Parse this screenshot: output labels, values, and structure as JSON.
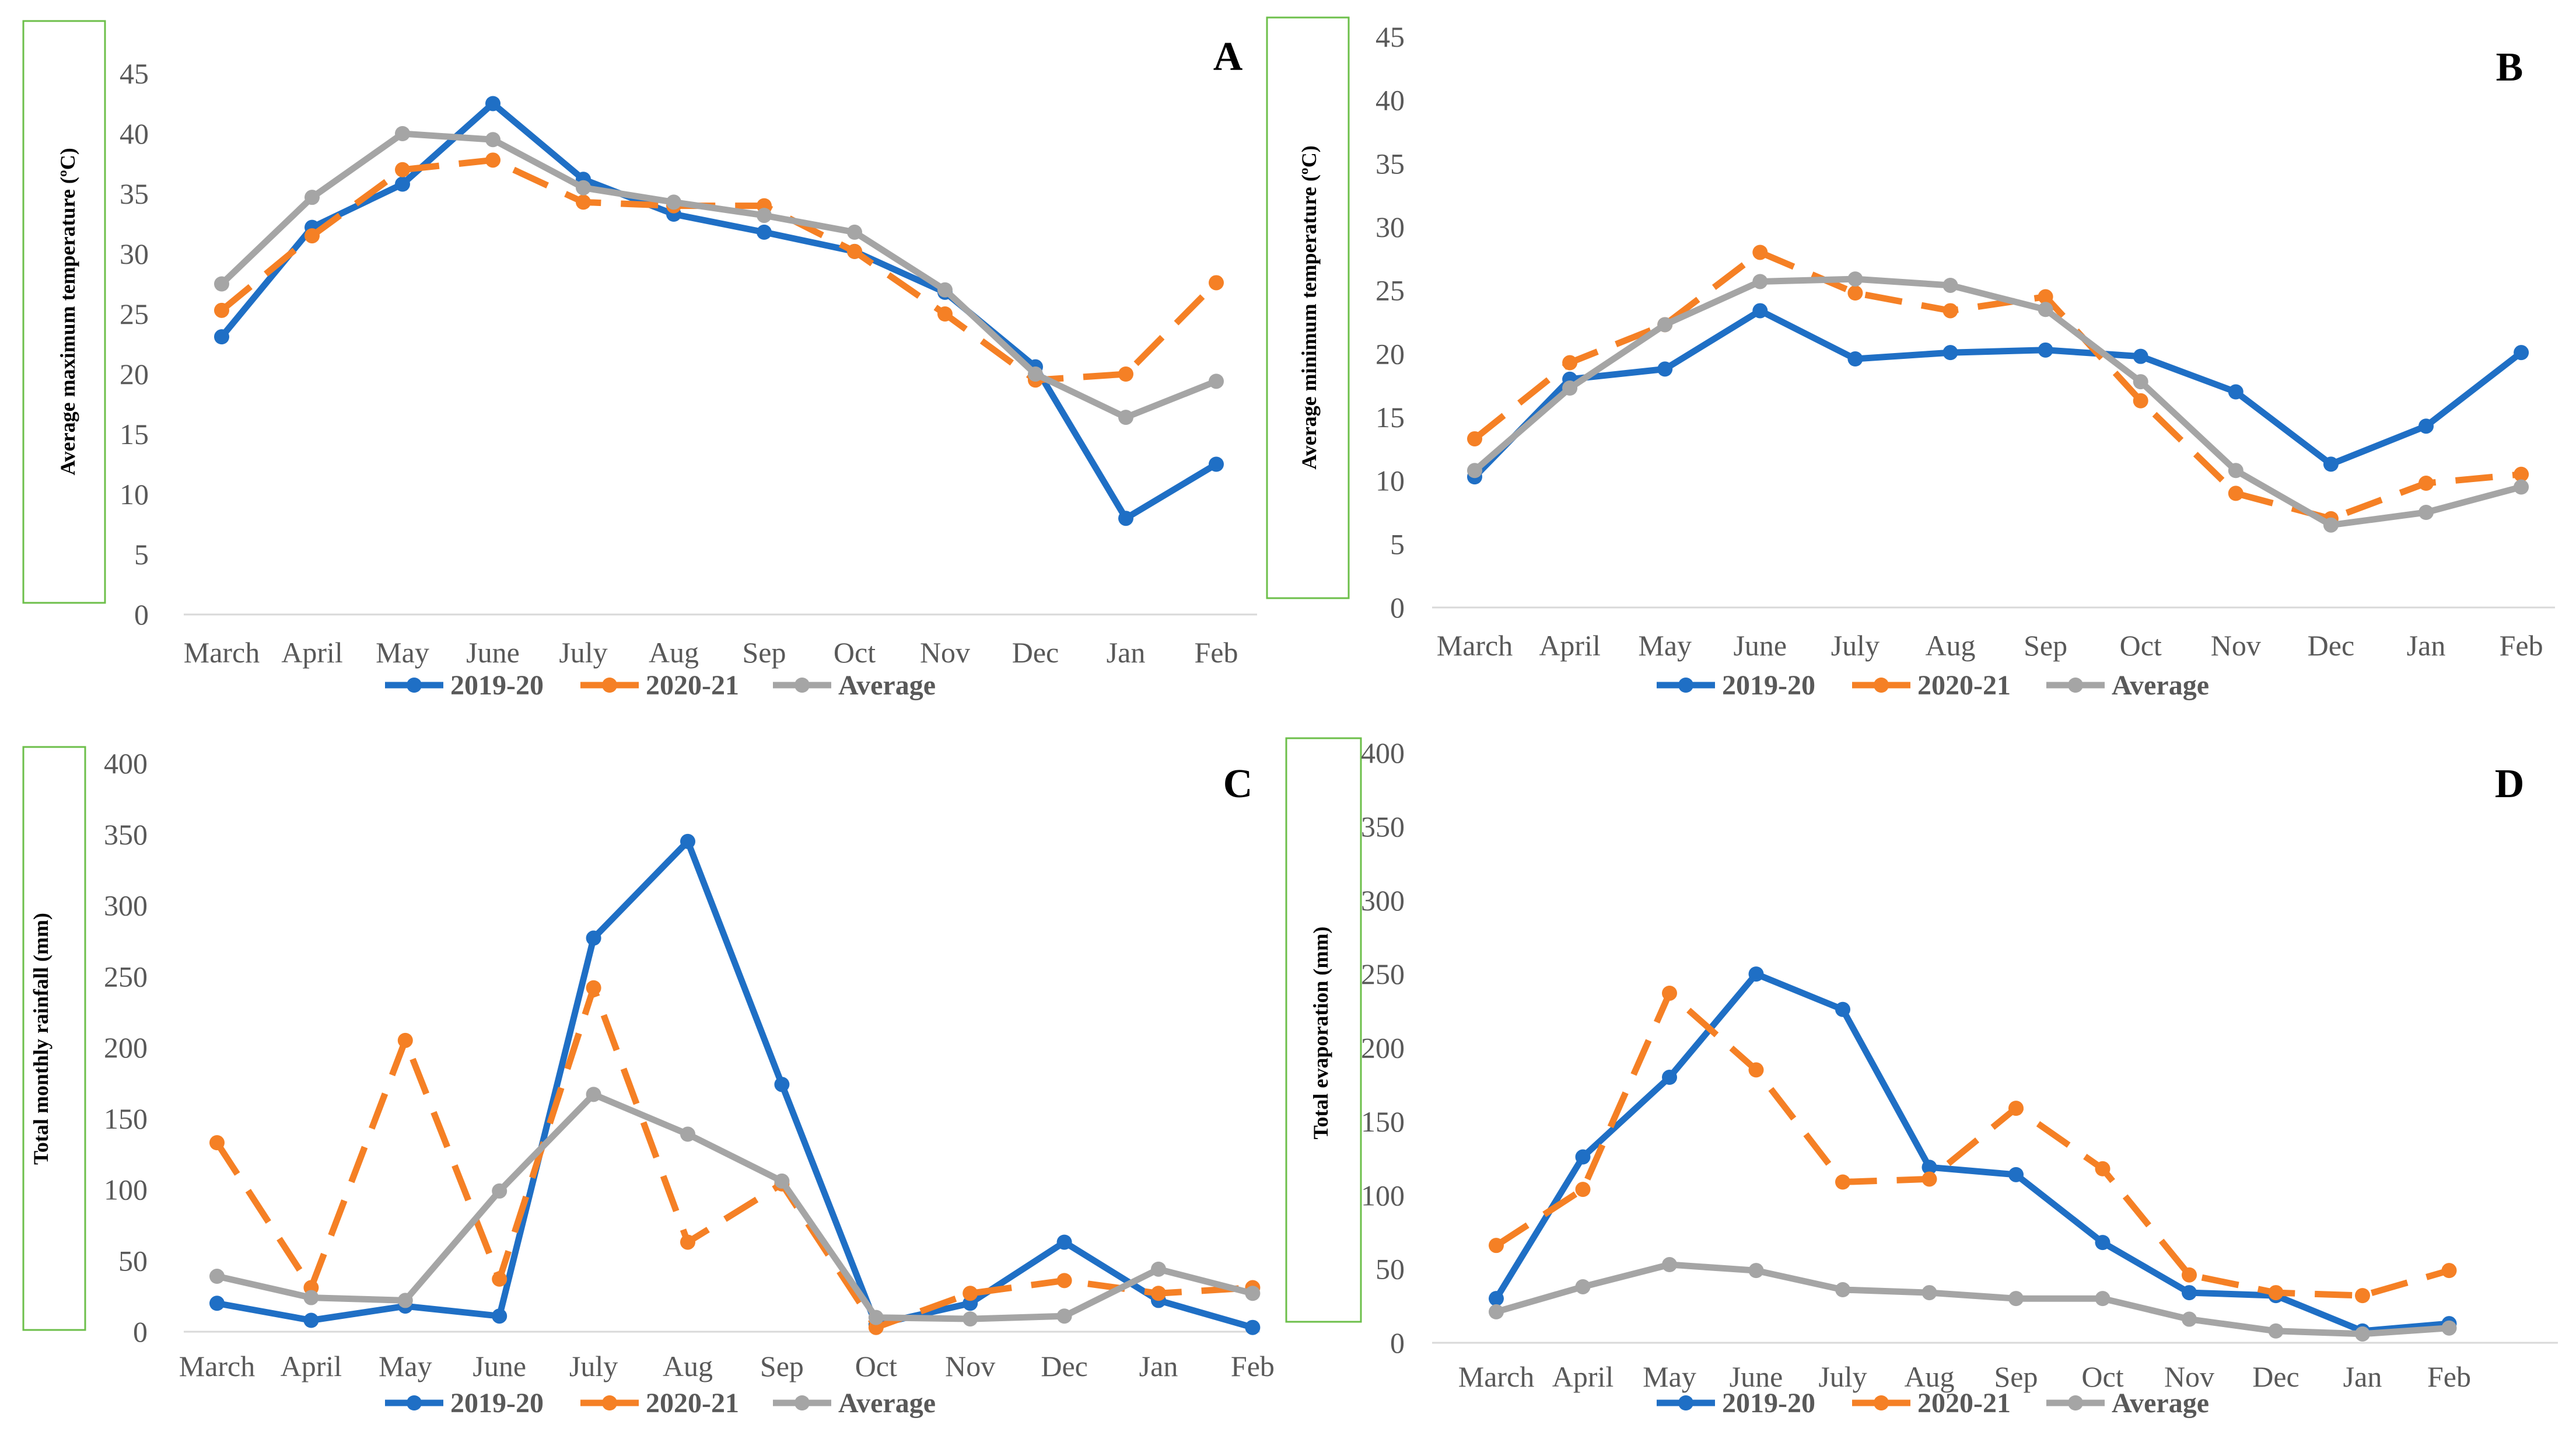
{
  "months": [
    "March",
    "April",
    "May",
    "June",
    "July",
    "Aug",
    "Sep",
    "Oct",
    "Nov",
    "Dec",
    "Jan",
    "Feb"
  ],
  "legend": [
    "2019-20",
    "2020-21",
    "Average"
  ],
  "colors": {
    "s2019": "#1f6fc5",
    "s2020": "#f58025",
    "avg": "#a5a5a5",
    "frame": "#6cbf4a",
    "axis": "#d9d9d9"
  },
  "chart_data": [
    {
      "type": "line",
      "panel": "A",
      "ylabel": "Average maximum temperature (ºC)",
      "ylim": [
        0,
        45
      ],
      "yticks": [
        0,
        5,
        10,
        15,
        20,
        25,
        30,
        35,
        40,
        45
      ],
      "categories": [
        "March",
        "April",
        "May",
        "June",
        "July",
        "Aug",
        "Sep",
        "Oct",
        "Nov",
        "Dec",
        "Jan",
        "Feb"
      ],
      "series": [
        {
          "name": "2019-20",
          "values": [
            23.1,
            32.2,
            35.8,
            42.5,
            36.2,
            33.3,
            31.8,
            30.2,
            26.8,
            20.6,
            8.0,
            12.5
          ]
        },
        {
          "name": "2020-21",
          "values": [
            25.3,
            31.5,
            37.0,
            37.8,
            34.3,
            34.0,
            34.0,
            30.2,
            25.0,
            19.5,
            20.0,
            27.6
          ]
        },
        {
          "name": "Average",
          "values": [
            27.5,
            34.7,
            40.0,
            39.5,
            35.5,
            34.3,
            33.2,
            31.8,
            27.0,
            20.0,
            16.4,
            19.4
          ]
        }
      ]
    },
    {
      "type": "line",
      "panel": "B",
      "ylabel": "Average minimum temperature (ºC)",
      "ylim": [
        0,
        45
      ],
      "yticks": [
        0,
        5,
        10,
        15,
        20,
        25,
        30,
        35,
        40,
        45
      ],
      "categories": [
        "March",
        "April",
        "May",
        "June",
        "July",
        "Aug",
        "Sep",
        "Oct",
        "Nov",
        "Dec",
        "Jan",
        "Feb"
      ],
      "series": [
        {
          "name": "2019-20",
          "values": [
            10.3,
            18.0,
            18.8,
            23.4,
            19.6,
            20.1,
            20.3,
            19.8,
            17.0,
            11.3,
            14.3,
            20.1
          ]
        },
        {
          "name": "2020-21",
          "values": [
            13.3,
            19.3,
            22.3,
            28.0,
            24.8,
            23.4,
            24.5,
            16.3,
            9.0,
            7.0,
            9.8,
            10.5
          ]
        },
        {
          "name": "Average",
          "values": [
            10.8,
            17.3,
            22.3,
            25.7,
            25.9,
            25.4,
            23.5,
            17.8,
            10.8,
            6.5,
            7.5,
            9.5
          ]
        }
      ]
    },
    {
      "type": "line",
      "panel": "C",
      "ylabel": "Total monthly rainfall (mm)",
      "ylim": [
        0,
        400
      ],
      "yticks": [
        0,
        50,
        100,
        150,
        200,
        250,
        300,
        350,
        400
      ],
      "categories": [
        "March",
        "April",
        "May",
        "June",
        "July",
        "Aug",
        "Sep",
        "Oct",
        "Nov",
        "Dec",
        "Jan",
        "Feb"
      ],
      "series": [
        {
          "name": "2019-20",
          "values": [
            20,
            8,
            18,
            11,
            277,
            345,
            174,
            5,
            20,
            63,
            22,
            3
          ]
        },
        {
          "name": "2020-21",
          "values": [
            133,
            31,
            205,
            37,
            242,
            63,
            104,
            3,
            27,
            36,
            27,
            31
          ]
        },
        {
          "name": "Average",
          "values": [
            39,
            24,
            22,
            99,
            167,
            139,
            106,
            10,
            9,
            11,
            44,
            27
          ]
        }
      ]
    },
    {
      "type": "line",
      "panel": "D",
      "ylabel": "Total evaporation (mm)",
      "ylim": [
        0,
        400
      ],
      "yticks": [
        0,
        50,
        100,
        150,
        200,
        250,
        300,
        350,
        400
      ],
      "categories": [
        "March",
        "April",
        "May",
        "June",
        "July",
        "Aug",
        "Sep",
        "Oct",
        "Nov",
        "Dec",
        "Jan",
        "Feb"
      ],
      "series": [
        {
          "name": "2019-20",
          "values": [
            30,
            126,
            180,
            250,
            226,
            119,
            114,
            68,
            34,
            32,
            8,
            13
          ]
        },
        {
          "name": "2020-21",
          "values": [
            66,
            104,
            237,
            185,
            109,
            111,
            159,
            118,
            46,
            34,
            32,
            49
          ]
        },
        {
          "name": "Average",
          "values": [
            21,
            38,
            53,
            49,
            36,
            34,
            30,
            30,
            16,
            8,
            6,
            10
          ]
        }
      ]
    }
  ]
}
